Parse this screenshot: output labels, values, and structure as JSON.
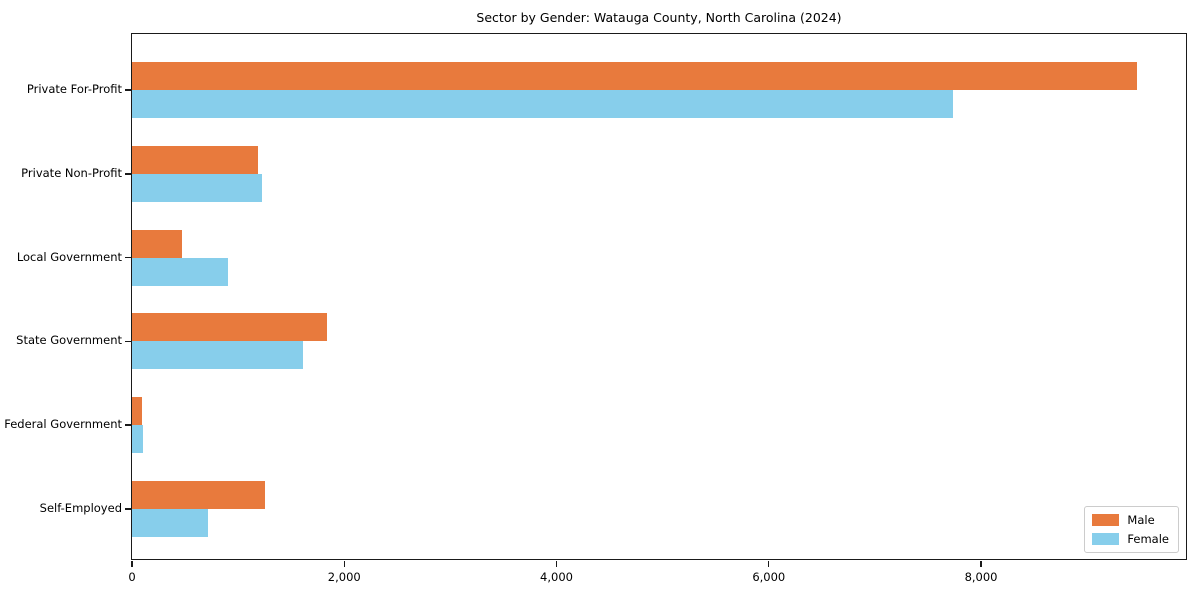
{
  "chart_data": {
    "type": "bar",
    "orientation": "horizontal",
    "title": "Sector by Gender: Watauga County, North Carolina (2024)",
    "categories": [
      "Private For-Profit",
      "Private Non-Profit",
      "Local Government",
      "State Government",
      "Federal Government",
      "Self-Employed"
    ],
    "series": [
      {
        "name": "Male",
        "color": "#e87a3d",
        "values": [
          9470,
          1190,
          470,
          1840,
          95,
          1255
        ]
      },
      {
        "name": "Female",
        "color": "#87ceeb",
        "values": [
          7740,
          1225,
          905,
          1615,
          105,
          715
        ]
      }
    ],
    "xlabel": "",
    "ylabel": "",
    "xlim": [
      0,
      9950
    ],
    "xticks": [
      0,
      2000,
      4000,
      6000,
      8000
    ],
    "xtick_labels": [
      "0",
      "2,000",
      "4,000",
      "6,000",
      "8,000"
    ],
    "legend_position": "lower right",
    "grid": false,
    "axis_color": "#1a1a1a",
    "background_color": "#ffffff"
  }
}
